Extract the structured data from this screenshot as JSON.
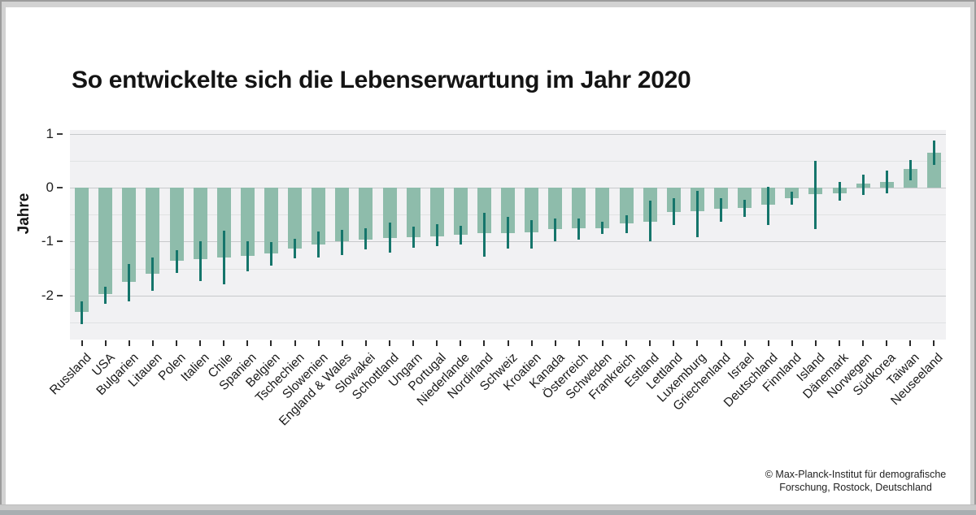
{
  "title": "So entwickelte sich die Lebenserwartung im Jahr 2020",
  "source": {
    "line1": "© Max-Planck-Institut für demografische",
    "line2": "Forschung, Rostock, Deutschland"
  },
  "chart_data": {
    "type": "bar",
    "title": "So entwickelte sich die Lebenserwartung im Jahr 2020",
    "xlabel": "",
    "ylabel": "Jahre",
    "ylim": [
      -2.82,
      1.07
    ],
    "yticks": [
      1,
      0,
      -1,
      -2
    ],
    "grid_step": 0.5,
    "grid": true,
    "legend_position": "none",
    "error_bars": true,
    "categories": [
      "Russland",
      "USA",
      "Bulgarien",
      "Litauen",
      "Polen",
      "Italien",
      "Chile",
      "Spanien",
      "Belgien",
      "Tschechien",
      "Slowenien",
      "England & Wales",
      "Slowakei",
      "Schottland",
      "Ungarn",
      "Portugal",
      "Niederlande",
      "Nordirland",
      "Schweiz",
      "Kroatien",
      "Kanada",
      "Österreich",
      "Schweden",
      "Frankreich",
      "Estland",
      "Lettland",
      "Luxemburg",
      "Griechenland",
      "Israel",
      "Deutschland",
      "Finnland",
      "Island",
      "Dänemark",
      "Norwegen",
      "Südkorea",
      "Taiwan",
      "Neuseeland"
    ],
    "values": [
      -2.31,
      -1.98,
      -1.75,
      -1.6,
      -1.36,
      -1.33,
      -1.29,
      -1.26,
      -1.22,
      -1.13,
      -1.05,
      -1.0,
      -0.96,
      -0.94,
      -0.92,
      -0.9,
      -0.88,
      -0.85,
      -0.84,
      -0.83,
      -0.77,
      -0.76,
      -0.75,
      -0.67,
      -0.64,
      -0.45,
      -0.44,
      -0.39,
      -0.38,
      -0.31,
      -0.19,
      -0.12,
      -0.1,
      0.08,
      0.1,
      0.34,
      0.65
    ],
    "ci_low": [
      -2.54,
      -2.16,
      -2.12,
      -1.92,
      -1.58,
      -1.74,
      -1.8,
      -1.55,
      -1.45,
      -1.31,
      -1.3,
      -1.25,
      -1.14,
      -1.21,
      -1.11,
      -1.09,
      -1.05,
      -1.28,
      -1.14,
      -1.13,
      -1.0,
      -0.96,
      -0.86,
      -0.84,
      -1.0,
      -0.7,
      -0.92,
      -0.64,
      -0.54,
      -0.69,
      -0.31,
      -0.77,
      -0.25,
      -0.14,
      -0.11,
      0.14,
      0.42
    ],
    "ci_high": [
      -2.11,
      -1.84,
      -1.42,
      -1.3,
      -1.16,
      -0.99,
      -0.8,
      -1.0,
      -1.01,
      -0.95,
      -0.81,
      -0.79,
      -0.76,
      -0.65,
      -0.72,
      -0.68,
      -0.71,
      -0.47,
      -0.55,
      -0.61,
      -0.57,
      -0.57,
      -0.63,
      -0.51,
      -0.24,
      -0.19,
      -0.06,
      -0.19,
      -0.23,
      0.02,
      -0.08,
      0.5,
      0.1,
      0.24,
      0.32,
      0.52,
      0.87
    ],
    "colors": {
      "bar": "#8ebcab",
      "error": "#15756b",
      "plot_background": "#f1f1f3"
    }
  }
}
